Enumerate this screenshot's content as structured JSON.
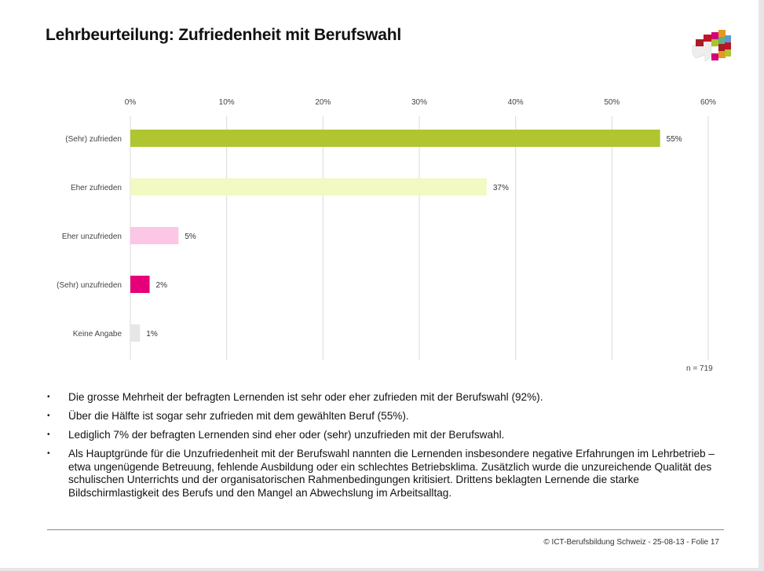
{
  "title": "Lehrbeurteilung: Zufriedenheit mit Berufswahl",
  "chart_data": {
    "type": "bar",
    "orientation": "horizontal",
    "categories": [
      "(Sehr) zufrieden",
      "Eher zufrieden",
      "Eher unzufrieden",
      "(Sehr) unzufrieden",
      "Keine Angabe"
    ],
    "values": [
      55,
      37,
      5,
      2,
      1
    ],
    "value_labels": [
      "55%",
      "37%",
      "5%",
      "2%",
      "1%"
    ],
    "colors": [
      "#b0c530",
      "#f2f9c2",
      "#fcc6e6",
      "#e5007a",
      "#e6e6e6"
    ],
    "xlim": [
      0,
      60
    ],
    "xticks": [
      0,
      10,
      20,
      30,
      40,
      50,
      60
    ],
    "xtick_labels": [
      "0%",
      "10%",
      "20%",
      "30%",
      "40%",
      "50%",
      "60%"
    ],
    "grid": true,
    "note": "n = 719"
  },
  "bullets": [
    "Die grosse Mehrheit der befragten Lernenden ist sehr oder eher zufrieden mit der Berufswahl (92%).",
    "Über die Hälfte ist sogar sehr zufrieden mit dem gewählten Beruf (55%).",
    "Lediglich 7% der befragten Lernenden sind eher oder (sehr) unzufrieden mit der Berufswahl.",
    "Als Hauptgründe für die Unzufriedenheit mit der Berufswahl nannten die Lernenden insbesondere negative Erfahrungen im Lehrbetrieb – etwa ungenügende Betreuung, fehlende Ausbildung oder ein schlechtes Betriebsklima. Zusätzlich wurde die unzureichende Qualität des schulischen Unterrichts und der organisatorischen Rahmenbedingungen kritisiert. Drittens beklagten Lernende die starke Bildschirmlastigkeit des Berufs und den Mangel an Abwechslung im Arbeitsalltag."
  ],
  "footer": "© ICT-Berufsbildung Schweiz - 25-08-13 - Folie 17"
}
